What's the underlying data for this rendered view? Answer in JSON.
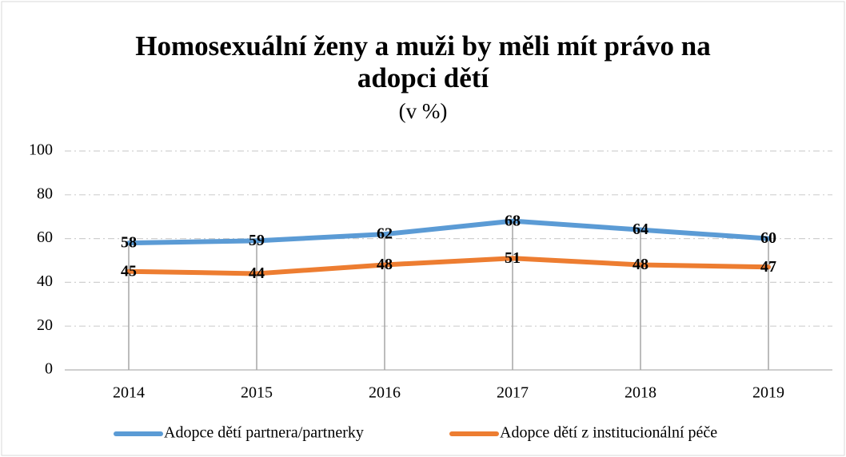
{
  "chart_data": {
    "type": "line",
    "title": "Homosexuální ženy a muži by měli mít právo na adopci dětí",
    "subtitle": "(v %)",
    "categories": [
      "2014",
      "2015",
      "2016",
      "2017",
      "2018",
      "2019"
    ],
    "series": [
      {
        "name": "Adopce dětí partnera/partnerky",
        "color": "#5b9bd5",
        "values": [
          58,
          59,
          62,
          68,
          64,
          60
        ]
      },
      {
        "name": "Adopce dětí z institucionální péče",
        "color": "#ed7d31",
        "values": [
          45,
          44,
          48,
          51,
          48,
          47
        ]
      }
    ],
    "ylim": [
      0,
      100
    ],
    "yticks": [
      0,
      20,
      40,
      60,
      80,
      100
    ],
    "grid": true,
    "legend": "bottom"
  }
}
